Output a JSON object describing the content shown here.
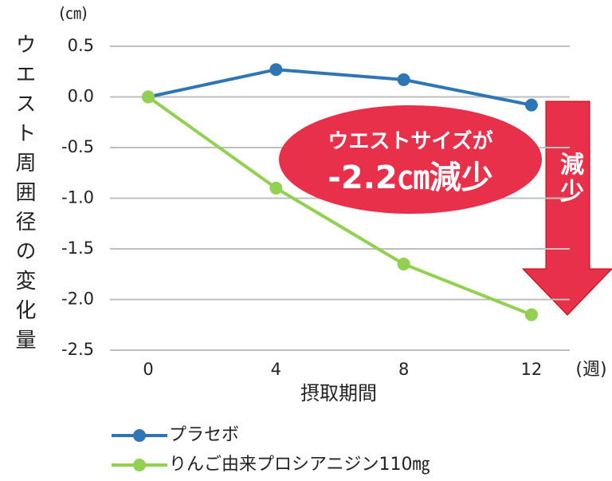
{
  "chart_data": {
    "type": "line",
    "y_unit": "(㎝)",
    "y_label": "ウエスト周囲径の変化量",
    "x_label": "摂取期間",
    "x_unit": "(週)",
    "x": [
      0,
      4,
      8,
      12
    ],
    "xlim": [
      -1.2,
      13.2
    ],
    "xticks": [
      0,
      4,
      8,
      12
    ],
    "ylim": [
      -2.5,
      0.5
    ],
    "yticks": [
      0.5,
      {
        "value": 0,
        "label": "0.0"
      },
      -0.5,
      {
        "value": -1,
        "label": "-1.0"
      },
      -1.5,
      {
        "value": -2,
        "label": "-2.0"
      },
      -2.5
    ],
    "grid": true,
    "series": [
      {
        "name": "プラセボ",
        "color": "#2e75b6",
        "values": [
          0,
          0.27,
          0.17,
          -0.08
        ]
      },
      {
        "name": "りんご由来プロシアニジン110㎎",
        "color": "#92d050",
        "values": [
          0,
          -0.9,
          -1.65,
          -2.15
        ]
      }
    ],
    "annotation": [
      "ウエストサイズが",
      "-2.2㎝減少"
    ],
    "arrow_label": "減少",
    "annotation_color": "#e8304a"
  }
}
